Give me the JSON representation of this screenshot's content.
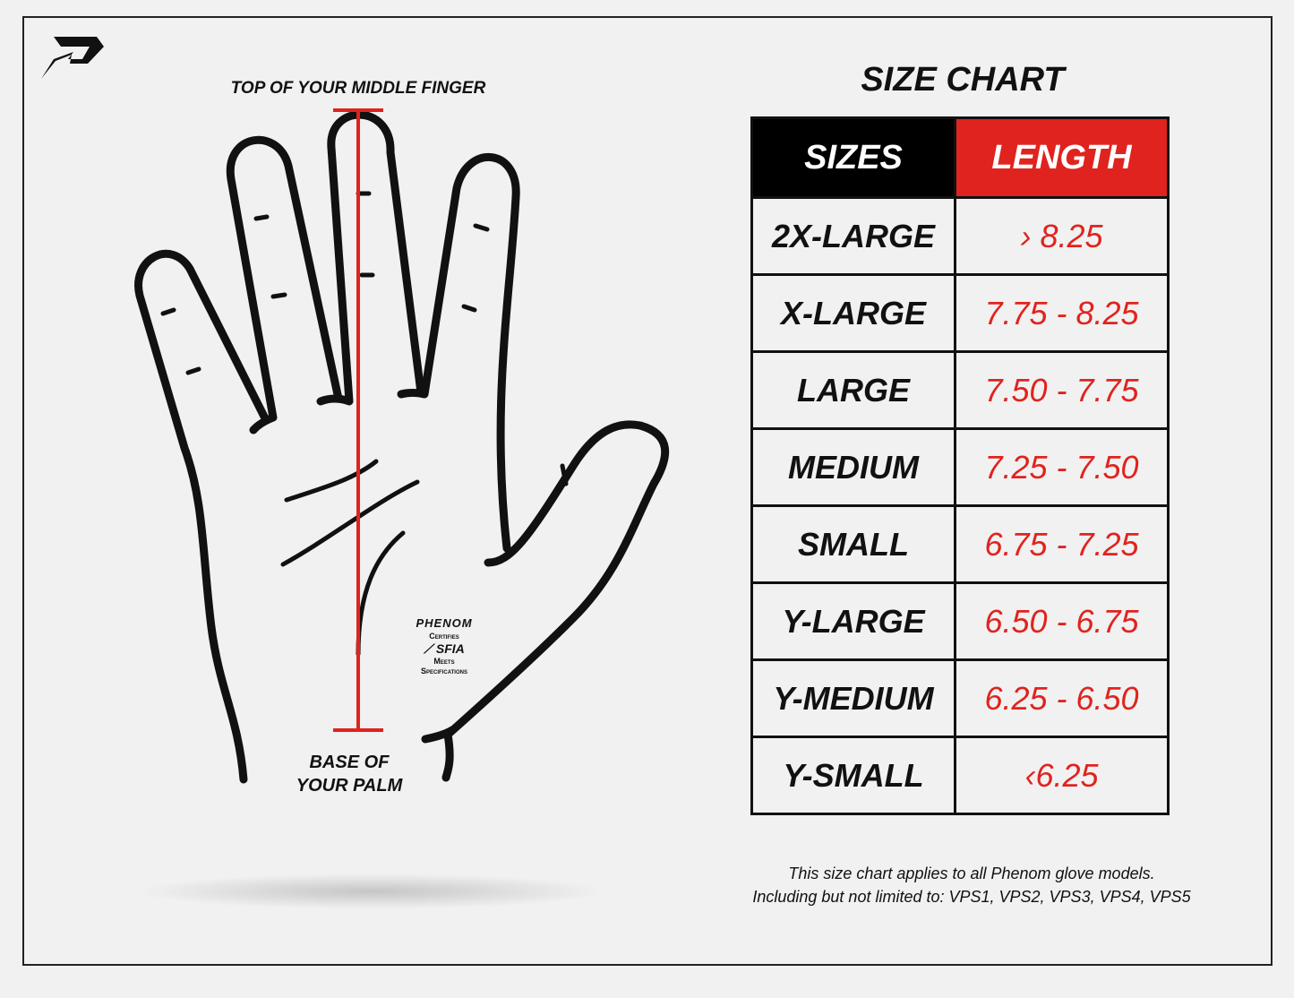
{
  "brand": {
    "logo": "phenom-logo"
  },
  "diagram": {
    "top_label": "TOP OF YOUR MIDDLE FINGER",
    "bottom_label_line1": "BASE OF",
    "bottom_label_line2": "YOUR PALM",
    "measure_color": "#e0231e"
  },
  "badge": {
    "brand": "PHENOM",
    "line1": "Certifies",
    "org": "SFIA",
    "line2": "Meets",
    "line3": "Specifications"
  },
  "size_chart": {
    "title": "SIZE CHART",
    "headers": [
      "SIZES",
      "LENGTH"
    ],
    "header_colors": [
      "#000000",
      "#e0231e"
    ],
    "rows": [
      {
        "size": "2X-LARGE",
        "length": "› 8.25"
      },
      {
        "size": "X-LARGE",
        "length": "7.75 - 8.25"
      },
      {
        "size": "LARGE",
        "length": "7.50 - 7.75"
      },
      {
        "size": "MEDIUM",
        "length": "7.25 - 7.50"
      },
      {
        "size": "SMALL",
        "length": "6.75 - 7.25"
      },
      {
        "size": "Y-LARGE",
        "length": "6.50 - 6.75"
      },
      {
        "size": "Y-MEDIUM",
        "length": "6.25 - 6.50"
      },
      {
        "size": "Y-SMALL",
        "length": "‹6.25"
      }
    ]
  },
  "footnote": {
    "line1": "This size chart applies to all Phenom glove models.",
    "line2": "Including but not limited to: VPS1, VPS2, VPS3, VPS4, VPS5"
  }
}
